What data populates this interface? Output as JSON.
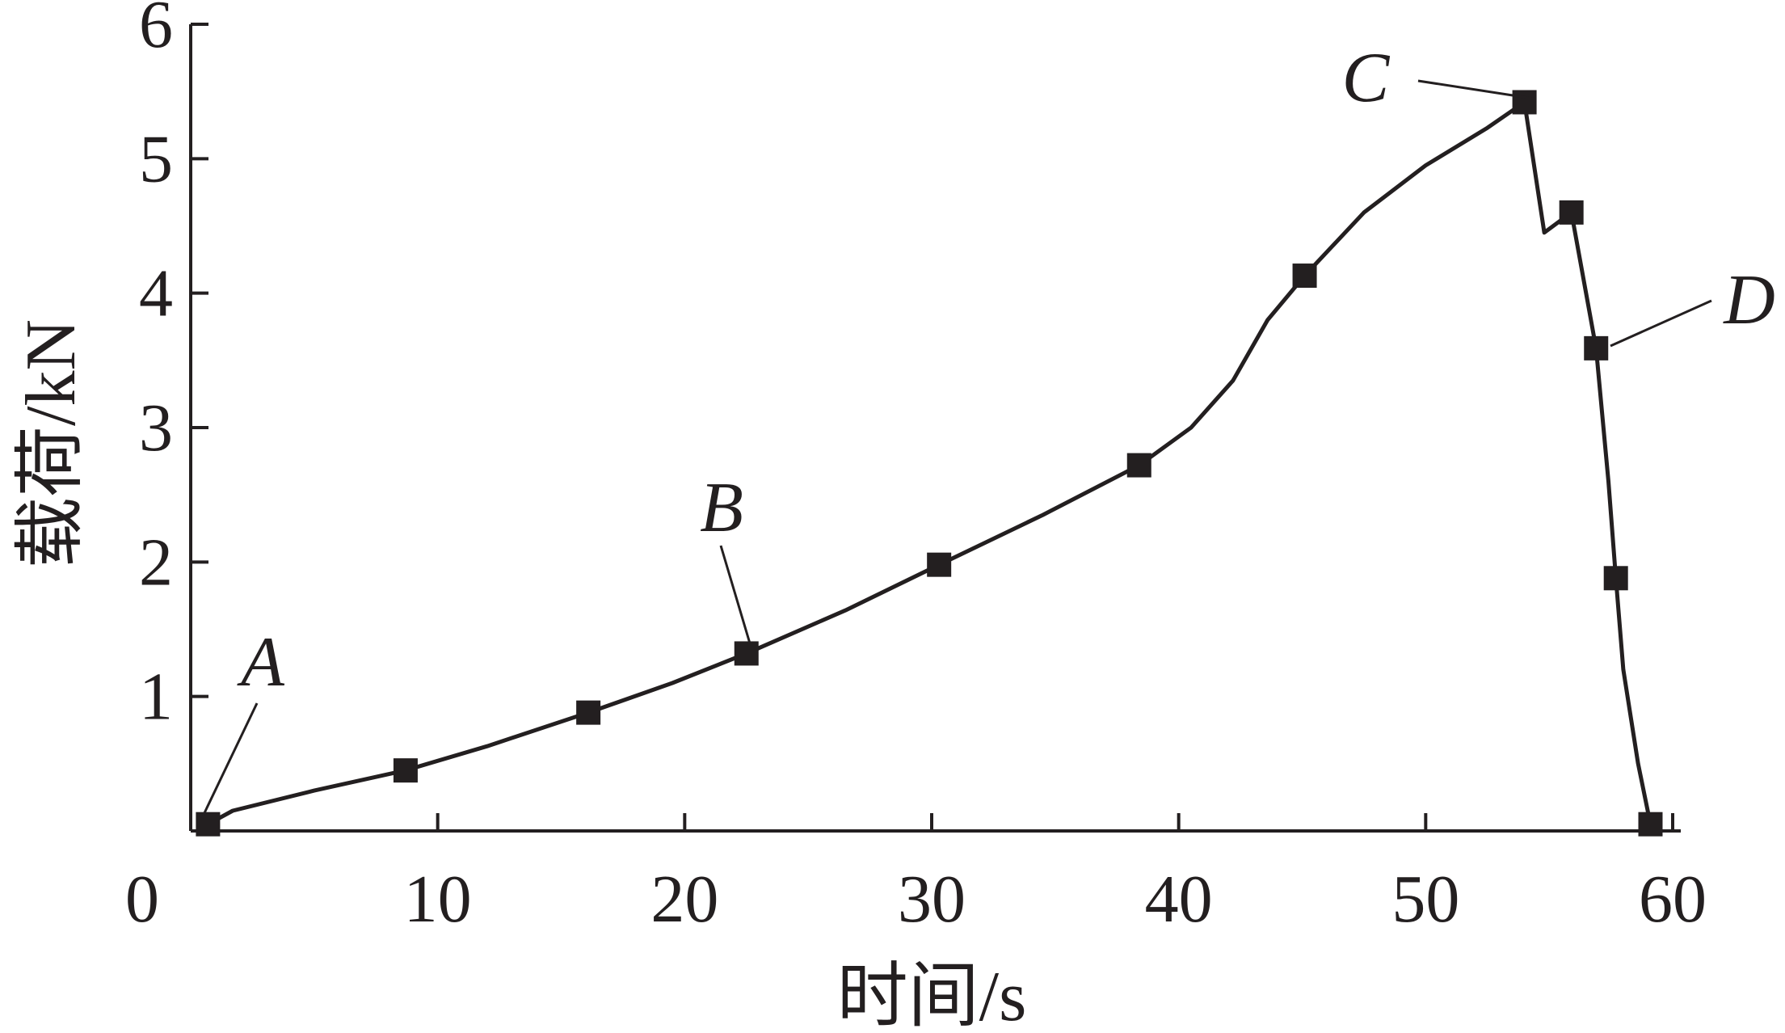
{
  "chart_data": {
    "type": "line",
    "xlabel": "时间/s",
    "ylabel": "载荷/kN",
    "xlim": [
      0,
      60
    ],
    "ylim": [
      0,
      6
    ],
    "x_ticks": [
      0,
      10,
      20,
      30,
      40,
      50,
      60
    ],
    "y_ticks": [
      1,
      2,
      3,
      4,
      5,
      6
    ],
    "grid": false,
    "series": [
      {
        "markers": [
          {
            "x": 0.7,
            "y": 0.05
          },
          {
            "x": 8.7,
            "y": 0.45
          },
          {
            "x": 16.1,
            "y": 0.88
          },
          {
            "x": 22.5,
            "y": 1.32
          },
          {
            "x": 30.3,
            "y": 1.98
          },
          {
            "x": 38.4,
            "y": 2.72
          },
          {
            "x": 45.1,
            "y": 4.13
          },
          {
            "x": 54.0,
            "y": 5.42
          },
          {
            "x": 55.9,
            "y": 4.6
          },
          {
            "x": 56.9,
            "y": 3.59
          },
          {
            "x": 57.7,
            "y": 1.88
          },
          {
            "x": 59.1,
            "y": 0.05
          }
        ],
        "curve": [
          {
            "x": 0.7,
            "y": 0.05
          },
          {
            "x": 1.7,
            "y": 0.15
          },
          {
            "x": 5.0,
            "y": 0.3
          },
          {
            "x": 8.7,
            "y": 0.45
          },
          {
            "x": 12.0,
            "y": 0.63
          },
          {
            "x": 16.1,
            "y": 0.88
          },
          {
            "x": 19.5,
            "y": 1.1
          },
          {
            "x": 22.5,
            "y": 1.32
          },
          {
            "x": 26.5,
            "y": 1.64
          },
          {
            "x": 30.3,
            "y": 1.98
          },
          {
            "x": 34.5,
            "y": 2.35
          },
          {
            "x": 38.4,
            "y": 2.72
          },
          {
            "x": 40.5,
            "y": 3.0
          },
          {
            "x": 42.2,
            "y": 3.35
          },
          {
            "x": 43.6,
            "y": 3.8
          },
          {
            "x": 45.1,
            "y": 4.13
          },
          {
            "x": 47.5,
            "y": 4.6
          },
          {
            "x": 50.0,
            "y": 4.95
          },
          {
            "x": 52.5,
            "y": 5.23
          },
          {
            "x": 54.0,
            "y": 5.42
          },
          {
            "x": 54.8,
            "y": 4.45
          },
          {
            "x": 55.9,
            "y": 4.6
          },
          {
            "x": 56.9,
            "y": 3.59
          },
          {
            "x": 57.4,
            "y": 2.6
          },
          {
            "x": 57.7,
            "y": 1.88
          },
          {
            "x": 58.0,
            "y": 1.2
          },
          {
            "x": 58.6,
            "y": 0.5
          },
          {
            "x": 59.1,
            "y": 0.05
          }
        ]
      }
    ],
    "annotations": [
      {
        "text": "A",
        "x": 0.7,
        "y": 0.05
      },
      {
        "text": "B",
        "x": 22.5,
        "y": 1.32
      },
      {
        "text": "C",
        "x": 54.0,
        "y": 5.42
      },
      {
        "text": "D",
        "x": 56.9,
        "y": 3.59
      }
    ]
  }
}
